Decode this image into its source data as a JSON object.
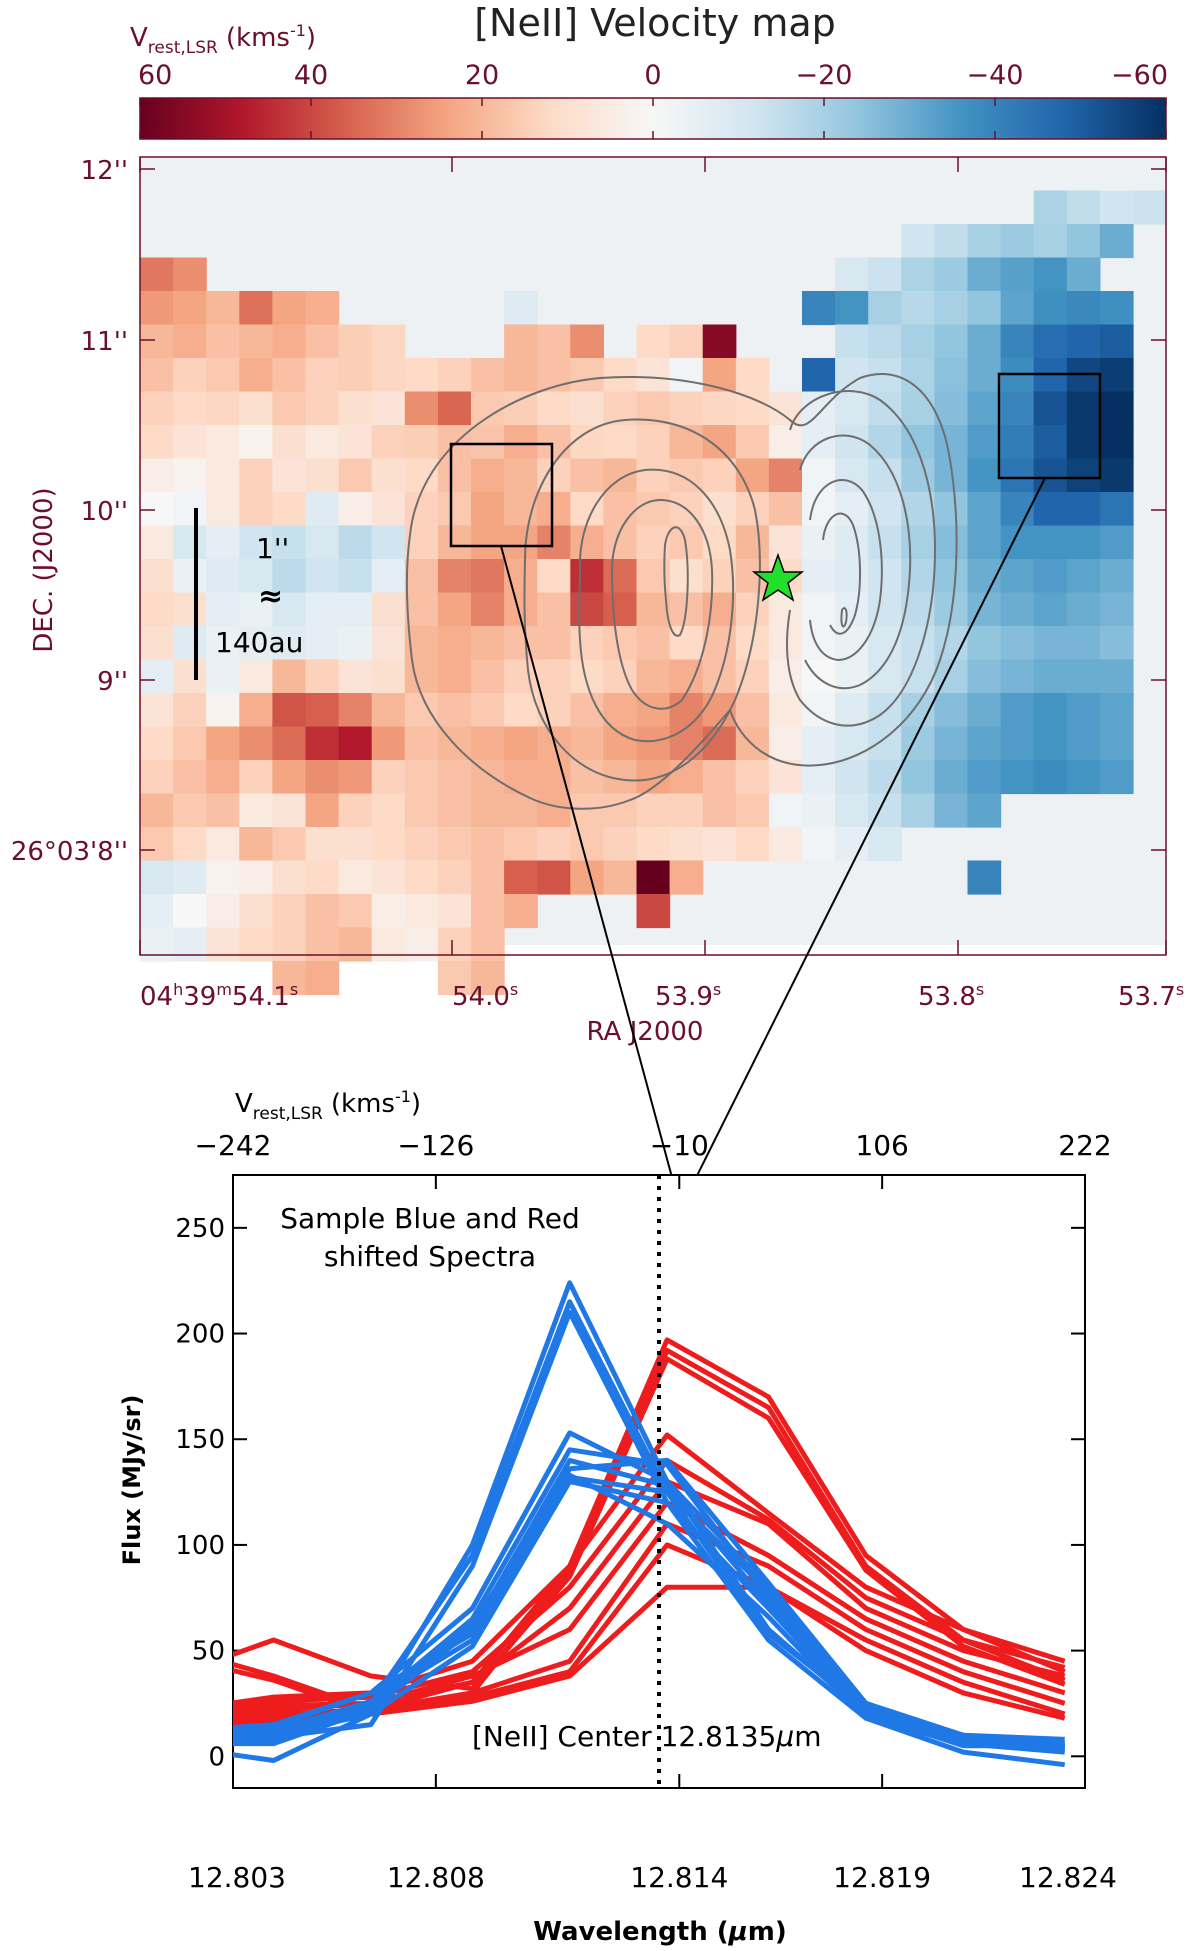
{
  "chart_data": [
    {
      "type": "heatmap",
      "title": "[NeII] Velocity map",
      "colorbar": {
        "label": "V",
        "label_sub": "rest,LSR",
        "label_unit": "(kms",
        "label_unit_exp": "-1",
        "label_unit_close": ")",
        "range": [
          60,
          -60
        ],
        "ticks": [
          "60",
          "40",
          "20",
          "0",
          "−20",
          "−40",
          "−60"
        ],
        "tick_values": [
          60,
          40,
          20,
          0,
          -20,
          -40,
          -60
        ],
        "colormap": [
          "#67001f",
          "#b2182b",
          "#d6604d",
          "#f4a582",
          "#fddbc7",
          "#f7f7f7",
          "#d1e5f0",
          "#92c5de",
          "#4393c3",
          "#2166ac",
          "#053061"
        ]
      },
      "xlabel": "RA J2000",
      "ylabel": "DEC. (J2000)",
      "x_ticks": [
        {
          "h": "04",
          "hs": "h",
          "m": "39",
          "ms": "m",
          "s": "54.1",
          "ss": "s"
        },
        {
          "s": "54.0",
          "ss": "s"
        },
        {
          "s": "53.9",
          "ss": "s"
        },
        {
          "s": "53.8",
          "ss": "s"
        },
        {
          "s": "53.7",
          "ss": "s"
        }
      ],
      "y_ticks": [
        "12''",
        "11''",
        "10''",
        "9''",
        "26°03'8''"
      ],
      "scale_bar": {
        "line1": "1''",
        "line2": "≈",
        "line3": "140au"
      },
      "sample_boxes": [
        "red-shifted sample",
        "blue-shifted sample"
      ],
      "grid": false,
      "star_marker": "green-star",
      "velocity_pixels": [
        [
          null,
          null,
          null,
          null,
          null,
          null,
          null,
          null,
          null,
          null,
          null,
          null,
          null,
          null,
          null,
          null,
          null,
          null,
          null,
          null,
          null,
          null,
          null,
          null,
          null,
          null,
          null,
          null,
          null,
          null
        ],
        [
          null,
          null,
          null,
          null,
          null,
          null,
          null,
          null,
          null,
          null,
          null,
          null,
          null,
          null,
          null,
          null,
          null,
          null,
          null,
          null,
          null,
          null,
          null,
          null,
          null,
          null,
          null,
          -19,
          -15,
          -12,
          -13
        ],
        [
          null,
          null,
          null,
          null,
          null,
          null,
          null,
          null,
          null,
          null,
          null,
          null,
          null,
          null,
          null,
          null,
          null,
          null,
          null,
          null,
          null,
          null,
          null,
          -12,
          -15,
          -20,
          -22,
          -20,
          -24,
          -30
        ],
        [
          32,
          28,
          null,
          null,
          null,
          null,
          null,
          null,
          null,
          null,
          null,
          null,
          null,
          null,
          null,
          null,
          null,
          null,
          null,
          null,
          null,
          -10,
          -13,
          -19,
          -22,
          -30,
          -33,
          -36,
          -30
        ],
        [
          26,
          24,
          20,
          33,
          24,
          22,
          null,
          null,
          null,
          null,
          null,
          -8,
          null,
          null,
          null,
          null,
          null,
          null,
          null,
          null,
          -40,
          -36,
          -20,
          -17,
          -20,
          -24,
          -32,
          -37,
          -39,
          -37
        ],
        [
          20,
          22,
          18,
          20,
          22,
          18,
          15,
          13,
          null,
          null,
          null,
          20,
          18,
          28,
          null,
          12,
          14,
          55,
          null,
          null,
          null,
          -14,
          -16,
          -20,
          -24,
          -30,
          -40,
          -46,
          -48,
          -50
        ],
        [
          18,
          14,
          16,
          22,
          18,
          14,
          15,
          13,
          12,
          14,
          18,
          20,
          18,
          16,
          12,
          8,
          -2,
          24,
          12,
          null,
          -48,
          -12,
          -14,
          -19,
          -25,
          -30,
          -38,
          -48,
          -55,
          -57
        ],
        [
          14,
          12,
          13,
          10,
          16,
          14,
          10,
          8,
          28,
          35,
          16,
          15,
          12,
          10,
          14,
          16,
          14,
          13,
          12,
          8,
          -6,
          -10,
          -15,
          -20,
          -26,
          -32,
          -40,
          -52,
          -58,
          -60
        ],
        [
          12,
          8,
          6,
          2,
          10,
          6,
          8,
          14,
          15,
          18,
          17,
          22,
          18,
          13,
          12,
          14,
          20,
          24,
          16,
          4,
          -6,
          -12,
          -18,
          -24,
          -28,
          -34,
          -42,
          -50,
          -58,
          -60
        ],
        [
          4,
          2,
          6,
          14,
          8,
          10,
          16,
          10,
          12,
          18,
          22,
          20,
          14,
          18,
          20,
          14,
          16,
          14,
          24,
          30,
          -2,
          -10,
          -14,
          -22,
          -28,
          -36,
          -44,
          -52,
          -56,
          -58
        ],
        [
          0,
          -2,
          6,
          14,
          12,
          -8,
          4,
          8,
          14,
          16,
          24,
          20,
          22,
          12,
          18,
          16,
          14,
          10,
          14,
          18,
          -2,
          -6,
          -12,
          -18,
          -24,
          -32,
          -40,
          -48,
          -48,
          -44
        ],
        [
          6,
          -10,
          -6,
          -12,
          -14,
          -10,
          -16,
          -12,
          14,
          20,
          24,
          24,
          30,
          22,
          18,
          14,
          16,
          12,
          20,
          8,
          -4,
          -8,
          -14,
          -20,
          -26,
          -32,
          -36,
          -36,
          -36,
          -34
        ],
        [
          10,
          -4,
          -8,
          -10,
          -16,
          -12,
          -14,
          -6,
          18,
          30,
          32,
          22,
          12,
          44,
          34,
          16,
          10,
          14,
          18,
          12,
          -6,
          -8,
          -12,
          -18,
          -24,
          -30,
          -32,
          -34,
          -32,
          -30
        ],
        [
          12,
          10,
          -6,
          -4,
          -10,
          -6,
          -6,
          10,
          18,
          24,
          30,
          22,
          18,
          40,
          36,
          20,
          18,
          22,
          14,
          6,
          -2,
          -6,
          -12,
          -16,
          -22,
          -28,
          -30,
          -32,
          -30,
          -28
        ],
        [
          10,
          -8,
          -4,
          -6,
          -8,
          -6,
          -4,
          8,
          20,
          22,
          20,
          18,
          18,
          14,
          16,
          18,
          12,
          18,
          12,
          6,
          -2,
          -4,
          -10,
          -14,
          -18,
          -24,
          -26,
          -28,
          -28,
          -26
        ],
        [
          -6,
          10,
          -4,
          6,
          20,
          14,
          8,
          10,
          20,
          22,
          18,
          14,
          14,
          12,
          14,
          20,
          22,
          18,
          14,
          4,
          0,
          -4,
          -10,
          -14,
          -20,
          -26,
          -28,
          -30,
          -30,
          -30
        ],
        [
          8,
          14,
          2,
          22,
          38,
          36,
          30,
          20,
          16,
          18,
          16,
          12,
          14,
          18,
          22,
          24,
          30,
          26,
          18,
          6,
          -2,
          -8,
          -14,
          -20,
          -26,
          -30,
          -34,
          -36,
          -34,
          -32
        ],
        [
          12,
          16,
          24,
          28,
          34,
          44,
          48,
          26,
          18,
          20,
          22,
          24,
          22,
          20,
          24,
          26,
          30,
          34,
          20,
          4,
          -6,
          -10,
          -14,
          -22,
          -28,
          -32,
          -34,
          -36,
          -34,
          -32
        ],
        [
          14,
          18,
          22,
          14,
          24,
          28,
          26,
          14,
          16,
          18,
          20,
          22,
          22,
          18,
          20,
          24,
          22,
          18,
          14,
          8,
          -6,
          -12,
          -16,
          -24,
          -30,
          -34,
          -36,
          -38,
          -36,
          -34
        ],
        [
          20,
          16,
          18,
          6,
          8,
          24,
          14,
          12,
          16,
          18,
          20,
          20,
          22,
          16,
          16,
          14,
          14,
          18,
          16,
          -2,
          -4,
          -10,
          -14,
          -20,
          -28,
          -32,
          null,
          null,
          null,
          null
        ],
        [
          16,
          12,
          6,
          20,
          16,
          10,
          10,
          12,
          14,
          16,
          18,
          16,
          14,
          16,
          14,
          12,
          10,
          8,
          12,
          6,
          -2,
          -6,
          -10,
          null,
          null,
          null,
          null,
          null,
          null,
          null
        ],
        [
          -10,
          -8,
          2,
          4,
          10,
          12,
          6,
          8,
          12,
          14,
          18,
          36,
          38,
          24,
          20,
          60,
          22,
          null,
          null,
          null,
          null,
          null,
          null,
          null,
          null,
          -40,
          null,
          null,
          null,
          null
        ],
        [
          -6,
          0,
          4,
          10,
          14,
          18,
          16,
          4,
          6,
          8,
          18,
          22,
          null,
          null,
          null,
          40,
          null,
          null,
          null,
          null,
          null,
          null,
          null,
          null,
          null,
          null,
          null,
          null,
          null,
          null
        ],
        [
          -4,
          -6,
          8,
          12,
          14,
          18,
          20,
          6,
          4,
          14,
          18,
          null,
          null,
          null,
          null,
          null,
          null,
          null,
          null,
          null,
          null,
          null,
          null,
          null,
          null,
          null,
          null,
          null,
          null,
          null
        ],
        [
          null,
          null,
          null,
          null,
          20,
          22,
          null,
          null,
          null,
          16,
          20,
          null,
          null,
          null,
          null,
          null,
          null,
          null,
          null,
          null,
          null,
          null,
          null,
          null,
          null,
          null,
          null,
          null,
          null,
          null
        ]
      ]
    },
    {
      "type": "line",
      "title": "Sample Blue and Red",
      "title_line2": "shifted Spectra",
      "xlabel": "Wavelength (",
      "xlabel_mu": "μ",
      "xlabel_end": "m)",
      "ylabel": "Flux (MJy/sr)",
      "top_axis_label": "V",
      "top_axis_label_sub": "rest,LSR",
      "top_axis_label_unit": "(kms",
      "top_axis_label_unit_exp": "-1",
      "top_axis_label_unit_close": ")",
      "x_ticks": [
        "12.803",
        "12.808",
        "12.814",
        "12.819",
        "12.824"
      ],
      "x_tick_values": [
        12.803,
        12.808,
        12.814,
        12.819,
        12.824
      ],
      "top_ticks": [
        "−242",
        "−126",
        "−10",
        "106",
        "222"
      ],
      "y_ticks": [
        "0",
        "50",
        "100",
        "150",
        "200",
        "250"
      ],
      "y_tick_values": [
        0,
        50,
        100,
        150,
        200,
        250
      ],
      "xlim": [
        12.803,
        12.824
      ],
      "ylim": [
        -15,
        275
      ],
      "grid": false,
      "center_line": {
        "x": 12.8135,
        "label_a": "[NeII] Center 12.8135",
        "label_mu": "μ",
        "label_b": "m"
      },
      "x": [
        12.8018,
        12.804,
        12.8064,
        12.8089,
        12.8113,
        12.8137,
        12.8162,
        12.8186,
        12.821,
        12.8235
      ],
      "colors": {
        "blue": "#1f78e6",
        "red": "#ee1c1c"
      },
      "series_blue": [
        [
          5,
          10,
          20,
          100,
          224,
          130,
          60,
          20,
          5,
          5
        ],
        [
          8,
          12,
          25,
          95,
          215,
          125,
          58,
          22,
          6,
          4
        ],
        [
          6,
          9,
          15,
          90,
          210,
          120,
          55,
          18,
          6,
          2
        ],
        [
          10,
          14,
          30,
          70,
          153,
          130,
          80,
          25,
          10,
          8
        ],
        [
          8,
          10,
          25,
          65,
          145,
          138,
          75,
          20,
          8,
          6
        ],
        [
          6,
          6,
          22,
          60,
          140,
          128,
          72,
          22,
          10,
          5
        ],
        [
          12,
          15,
          30,
          58,
          136,
          140,
          82,
          25,
          9,
          6
        ],
        [
          10,
          12,
          26,
          55,
          132,
          125,
          78,
          24,
          8,
          4
        ],
        [
          4,
          -2,
          20,
          52,
          130,
          120,
          70,
          20,
          6,
          3
        ],
        [
          9,
          8,
          24,
          62,
          133,
          110,
          66,
          18,
          2,
          -4
        ]
      ],
      "series_red": [
        [
          50,
          38,
          22,
          35,
          90,
          197,
          170,
          95,
          60,
          40
        ],
        [
          46,
          36,
          20,
          30,
          88,
          192,
          165,
          90,
          55,
          36
        ],
        [
          40,
          55,
          38,
          32,
          85,
          188,
          160,
          88,
          52,
          34
        ],
        [
          22,
          28,
          30,
          45,
          90,
          152,
          115,
          80,
          60,
          45
        ],
        [
          20,
          26,
          28,
          40,
          80,
          140,
          112,
          75,
          55,
          42
        ],
        [
          18,
          24,
          25,
          35,
          70,
          130,
          110,
          70,
          50,
          38
        ],
        [
          16,
          22,
          25,
          38,
          60,
          120,
          95,
          65,
          45,
          30
        ],
        [
          14,
          20,
          22,
          30,
          45,
          110,
          90,
          60,
          40,
          25
        ],
        [
          12,
          18,
          20,
          28,
          40,
          100,
          80,
          55,
          35,
          20
        ],
        [
          10,
          16,
          20,
          26,
          38,
          80,
          80,
          50,
          30,
          18
        ]
      ]
    }
  ]
}
